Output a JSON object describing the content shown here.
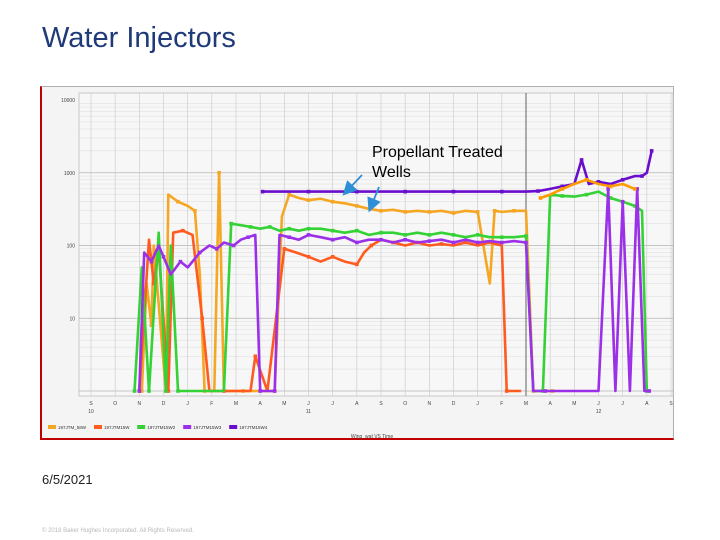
{
  "slide": {
    "title": "Water Injectors",
    "date": "6/5/2021",
    "copyright": "© 2018 Baker Hughes Incorporated. All Rights Reserved."
  },
  "callout": {
    "line1": "Propellant Treated",
    "line2": "Wells",
    "arrow_color": "#2e8fd8"
  },
  "chart_data": {
    "type": "line",
    "title": "",
    "xlabel": "Wing_wat VS Time",
    "ylabel": "",
    "y_scale": "log",
    "ylim": [
      1,
      10000
    ],
    "y_ticks": [
      "10000",
      "1000",
      "100",
      "10"
    ],
    "x_ticks": [
      "S",
      "O",
      "N",
      "D",
      "J",
      "F",
      "M",
      "A",
      "M",
      "J",
      "J",
      "A",
      "S",
      "O",
      "N",
      "D",
      "J",
      "F",
      "M",
      "A",
      "M",
      "J",
      "J",
      "A",
      "S"
    ],
    "x_year_labels": [
      {
        "at_index": 0,
        "label": "10"
      },
      {
        "at_index": 9,
        "label": "11"
      },
      {
        "at_index": 21,
        "label": "12"
      }
    ],
    "grid": true,
    "legend_position": "bottom",
    "series": [
      {
        "name": "197JTM_58W",
        "color": "#f5a623",
        "points": [
          [
            2.1,
            1
          ],
          [
            2.3,
            30
          ],
          [
            2.5,
            8
          ],
          [
            2.6,
            100
          ],
          [
            3.1,
            1
          ],
          [
            3.2,
            500
          ],
          [
            3.6,
            400
          ],
          [
            4.0,
            350
          ],
          [
            4.3,
            300
          ],
          [
            4.5,
            40
          ],
          [
            4.7,
            1
          ],
          [
            5.1,
            1
          ],
          [
            5.3,
            1000
          ],
          [
            5.5,
            1
          ],
          [
            6.3,
            1
          ],
          [
            6.9,
            1
          ],
          [
            7.6,
            1
          ],
          [
            7.9,
            250
          ],
          [
            8.2,
            500
          ],
          [
            8.6,
            450
          ],
          [
            9.0,
            420
          ],
          [
            9.5,
            440
          ],
          [
            10.0,
            400
          ],
          [
            10.5,
            380
          ],
          [
            11.0,
            350
          ],
          [
            11.5,
            320
          ],
          [
            12.0,
            300
          ],
          [
            12.5,
            310
          ],
          [
            13.0,
            290
          ],
          [
            13.5,
            300
          ],
          [
            14.0,
            290
          ],
          [
            14.5,
            300
          ],
          [
            15.0,
            280
          ],
          [
            15.5,
            300
          ],
          [
            16.0,
            290
          ],
          [
            16.5,
            30
          ],
          [
            16.7,
            300
          ],
          [
            17.0,
            290
          ],
          [
            17.5,
            300
          ],
          [
            18.0,
            300
          ],
          [
            18.3,
            1
          ],
          [
            18.8,
            1
          ],
          [
            19.1,
            1
          ]
        ]
      },
      {
        "name": "197JTM15W",
        "color": "#ff5a1f",
        "points": [
          [
            2.0,
            1
          ],
          [
            2.4,
            120
          ],
          [
            2.6,
            30
          ],
          [
            2.8,
            90
          ],
          [
            3.2,
            1
          ],
          [
            3.4,
            150
          ],
          [
            3.8,
            160
          ],
          [
            4.2,
            140
          ],
          [
            4.6,
            10
          ],
          [
            4.9,
            1
          ],
          [
            5.5,
            1
          ],
          [
            6.6,
            1
          ],
          [
            6.8,
            3
          ],
          [
            7.3,
            1
          ],
          [
            8.0,
            90
          ],
          [
            8.5,
            80
          ],
          [
            9.0,
            70
          ],
          [
            9.5,
            60
          ],
          [
            10.0,
            70
          ],
          [
            10.5,
            60
          ],
          [
            11.0,
            55
          ],
          [
            11.3,
            80
          ],
          [
            11.6,
            100
          ],
          [
            12.0,
            120
          ],
          [
            12.5,
            110
          ],
          [
            13.0,
            100
          ],
          [
            13.5,
            110
          ],
          [
            14.0,
            100
          ],
          [
            14.5,
            105
          ],
          [
            15.0,
            100
          ],
          [
            15.5,
            110
          ],
          [
            16.0,
            100
          ],
          [
            16.5,
            110
          ],
          [
            17.0,
            100
          ],
          [
            17.2,
            1
          ],
          [
            17.8,
            1
          ]
        ]
      },
      {
        "name": "197JTM15W2",
        "color": "#35d235",
        "points": [
          [
            1.8,
            1
          ],
          [
            2.1,
            50
          ],
          [
            2.4,
            1
          ],
          [
            2.8,
            150
          ],
          [
            3.1,
            1
          ],
          [
            3.3,
            100
          ],
          [
            3.6,
            1
          ],
          [
            5.5,
            1
          ],
          [
            5.8,
            200
          ],
          [
            6.2,
            190
          ],
          [
            6.6,
            180
          ],
          [
            7.0,
            170
          ],
          [
            7.4,
            180
          ],
          [
            7.8,
            160
          ],
          [
            8.2,
            170
          ],
          [
            8.6,
            160
          ],
          [
            9.0,
            170
          ],
          [
            9.5,
            170
          ],
          [
            10.0,
            160
          ],
          [
            10.5,
            150
          ],
          [
            11.0,
            160
          ],
          [
            11.5,
            140
          ],
          [
            12.0,
            150
          ],
          [
            12.5,
            150
          ],
          [
            13.0,
            140
          ],
          [
            13.5,
            150
          ],
          [
            14.0,
            140
          ],
          [
            14.5,
            150
          ],
          [
            15.0,
            140
          ],
          [
            15.5,
            130
          ],
          [
            16.0,
            140
          ],
          [
            16.5,
            130
          ],
          [
            17.0,
            130
          ],
          [
            17.5,
            130
          ],
          [
            18.0,
            135
          ],
          [
            18.3,
            1
          ],
          [
            18.7,
            1
          ],
          [
            19.0,
            500
          ],
          [
            19.5,
            480
          ],
          [
            20.0,
            470
          ],
          [
            20.5,
            500
          ],
          [
            21.0,
            550
          ],
          [
            21.5,
            450
          ],
          [
            22.0,
            400
          ],
          [
            22.5,
            350
          ],
          [
            22.8,
            300
          ],
          [
            23.0,
            1
          ]
        ]
      },
      {
        "name": "197JTM15W3",
        "color": "#9b30e8",
        "points": [
          [
            2.0,
            1
          ],
          [
            2.2,
            80
          ],
          [
            2.5,
            60
          ],
          [
            2.8,
            100
          ],
          [
            3.0,
            70
          ],
          [
            3.3,
            40
          ],
          [
            3.7,
            60
          ],
          [
            4.0,
            50
          ],
          [
            4.5,
            80
          ],
          [
            4.9,
            100
          ],
          [
            5.2,
            90
          ],
          [
            5.5,
            110
          ],
          [
            5.9,
            100
          ],
          [
            6.2,
            120
          ],
          [
            6.5,
            130
          ],
          [
            6.8,
            140
          ],
          [
            7.0,
            1
          ],
          [
            7.3,
            1
          ],
          [
            7.6,
            1
          ],
          [
            7.8,
            140
          ],
          [
            8.2,
            130
          ],
          [
            8.6,
            120
          ],
          [
            9.0,
            140
          ],
          [
            9.5,
            130
          ],
          [
            10.0,
            120
          ],
          [
            10.5,
            130
          ],
          [
            11.0,
            110
          ],
          [
            11.5,
            120
          ],
          [
            12.0,
            120
          ],
          [
            12.5,
            110
          ],
          [
            13.0,
            120
          ],
          [
            13.5,
            110
          ],
          [
            14.0,
            115
          ],
          [
            14.5,
            120
          ],
          [
            15.0,
            110
          ],
          [
            15.5,
            120
          ],
          [
            16.0,
            110
          ],
          [
            16.5,
            115
          ],
          [
            17.0,
            110
          ],
          [
            17.5,
            115
          ],
          [
            18.0,
            110
          ],
          [
            18.3,
            1
          ],
          [
            18.8,
            1
          ],
          [
            21.0,
            1
          ],
          [
            21.4,
            600
          ],
          [
            21.7,
            1
          ],
          [
            22.0,
            400
          ],
          [
            22.3,
            1
          ],
          [
            22.6,
            600
          ],
          [
            22.9,
            1
          ],
          [
            23.1,
            1
          ]
        ]
      },
      {
        "name": "197JTM15W4",
        "color": "#6a0dcc",
        "points": [
          [
            7.1,
            550
          ],
          [
            8.0,
            550
          ],
          [
            9.0,
            550
          ],
          [
            10.0,
            550
          ],
          [
            11.0,
            550
          ],
          [
            12.0,
            550
          ],
          [
            13.0,
            550
          ],
          [
            14.0,
            550
          ],
          [
            15.0,
            550
          ],
          [
            16.0,
            550
          ],
          [
            17.0,
            550
          ],
          [
            18.0,
            550
          ],
          [
            18.5,
            560
          ],
          [
            19.0,
            600
          ],
          [
            19.5,
            650
          ],
          [
            20.0,
            700
          ],
          [
            20.3,
            1500
          ],
          [
            20.6,
            700
          ],
          [
            21.0,
            750
          ],
          [
            21.5,
            700
          ],
          [
            22.0,
            800
          ],
          [
            22.5,
            900
          ],
          [
            22.8,
            900
          ],
          [
            23.0,
            1000
          ],
          [
            23.2,
            2000
          ]
        ]
      },
      {
        "name": "",
        "color": "#ff9a00",
        "points": [
          [
            18.6,
            450
          ],
          [
            19.0,
            500
          ],
          [
            19.5,
            600
          ],
          [
            20.0,
            700
          ],
          [
            20.5,
            800
          ],
          [
            21.0,
            700
          ],
          [
            21.5,
            650
          ],
          [
            22.0,
            700
          ],
          [
            22.5,
            600
          ]
        ]
      }
    ]
  }
}
